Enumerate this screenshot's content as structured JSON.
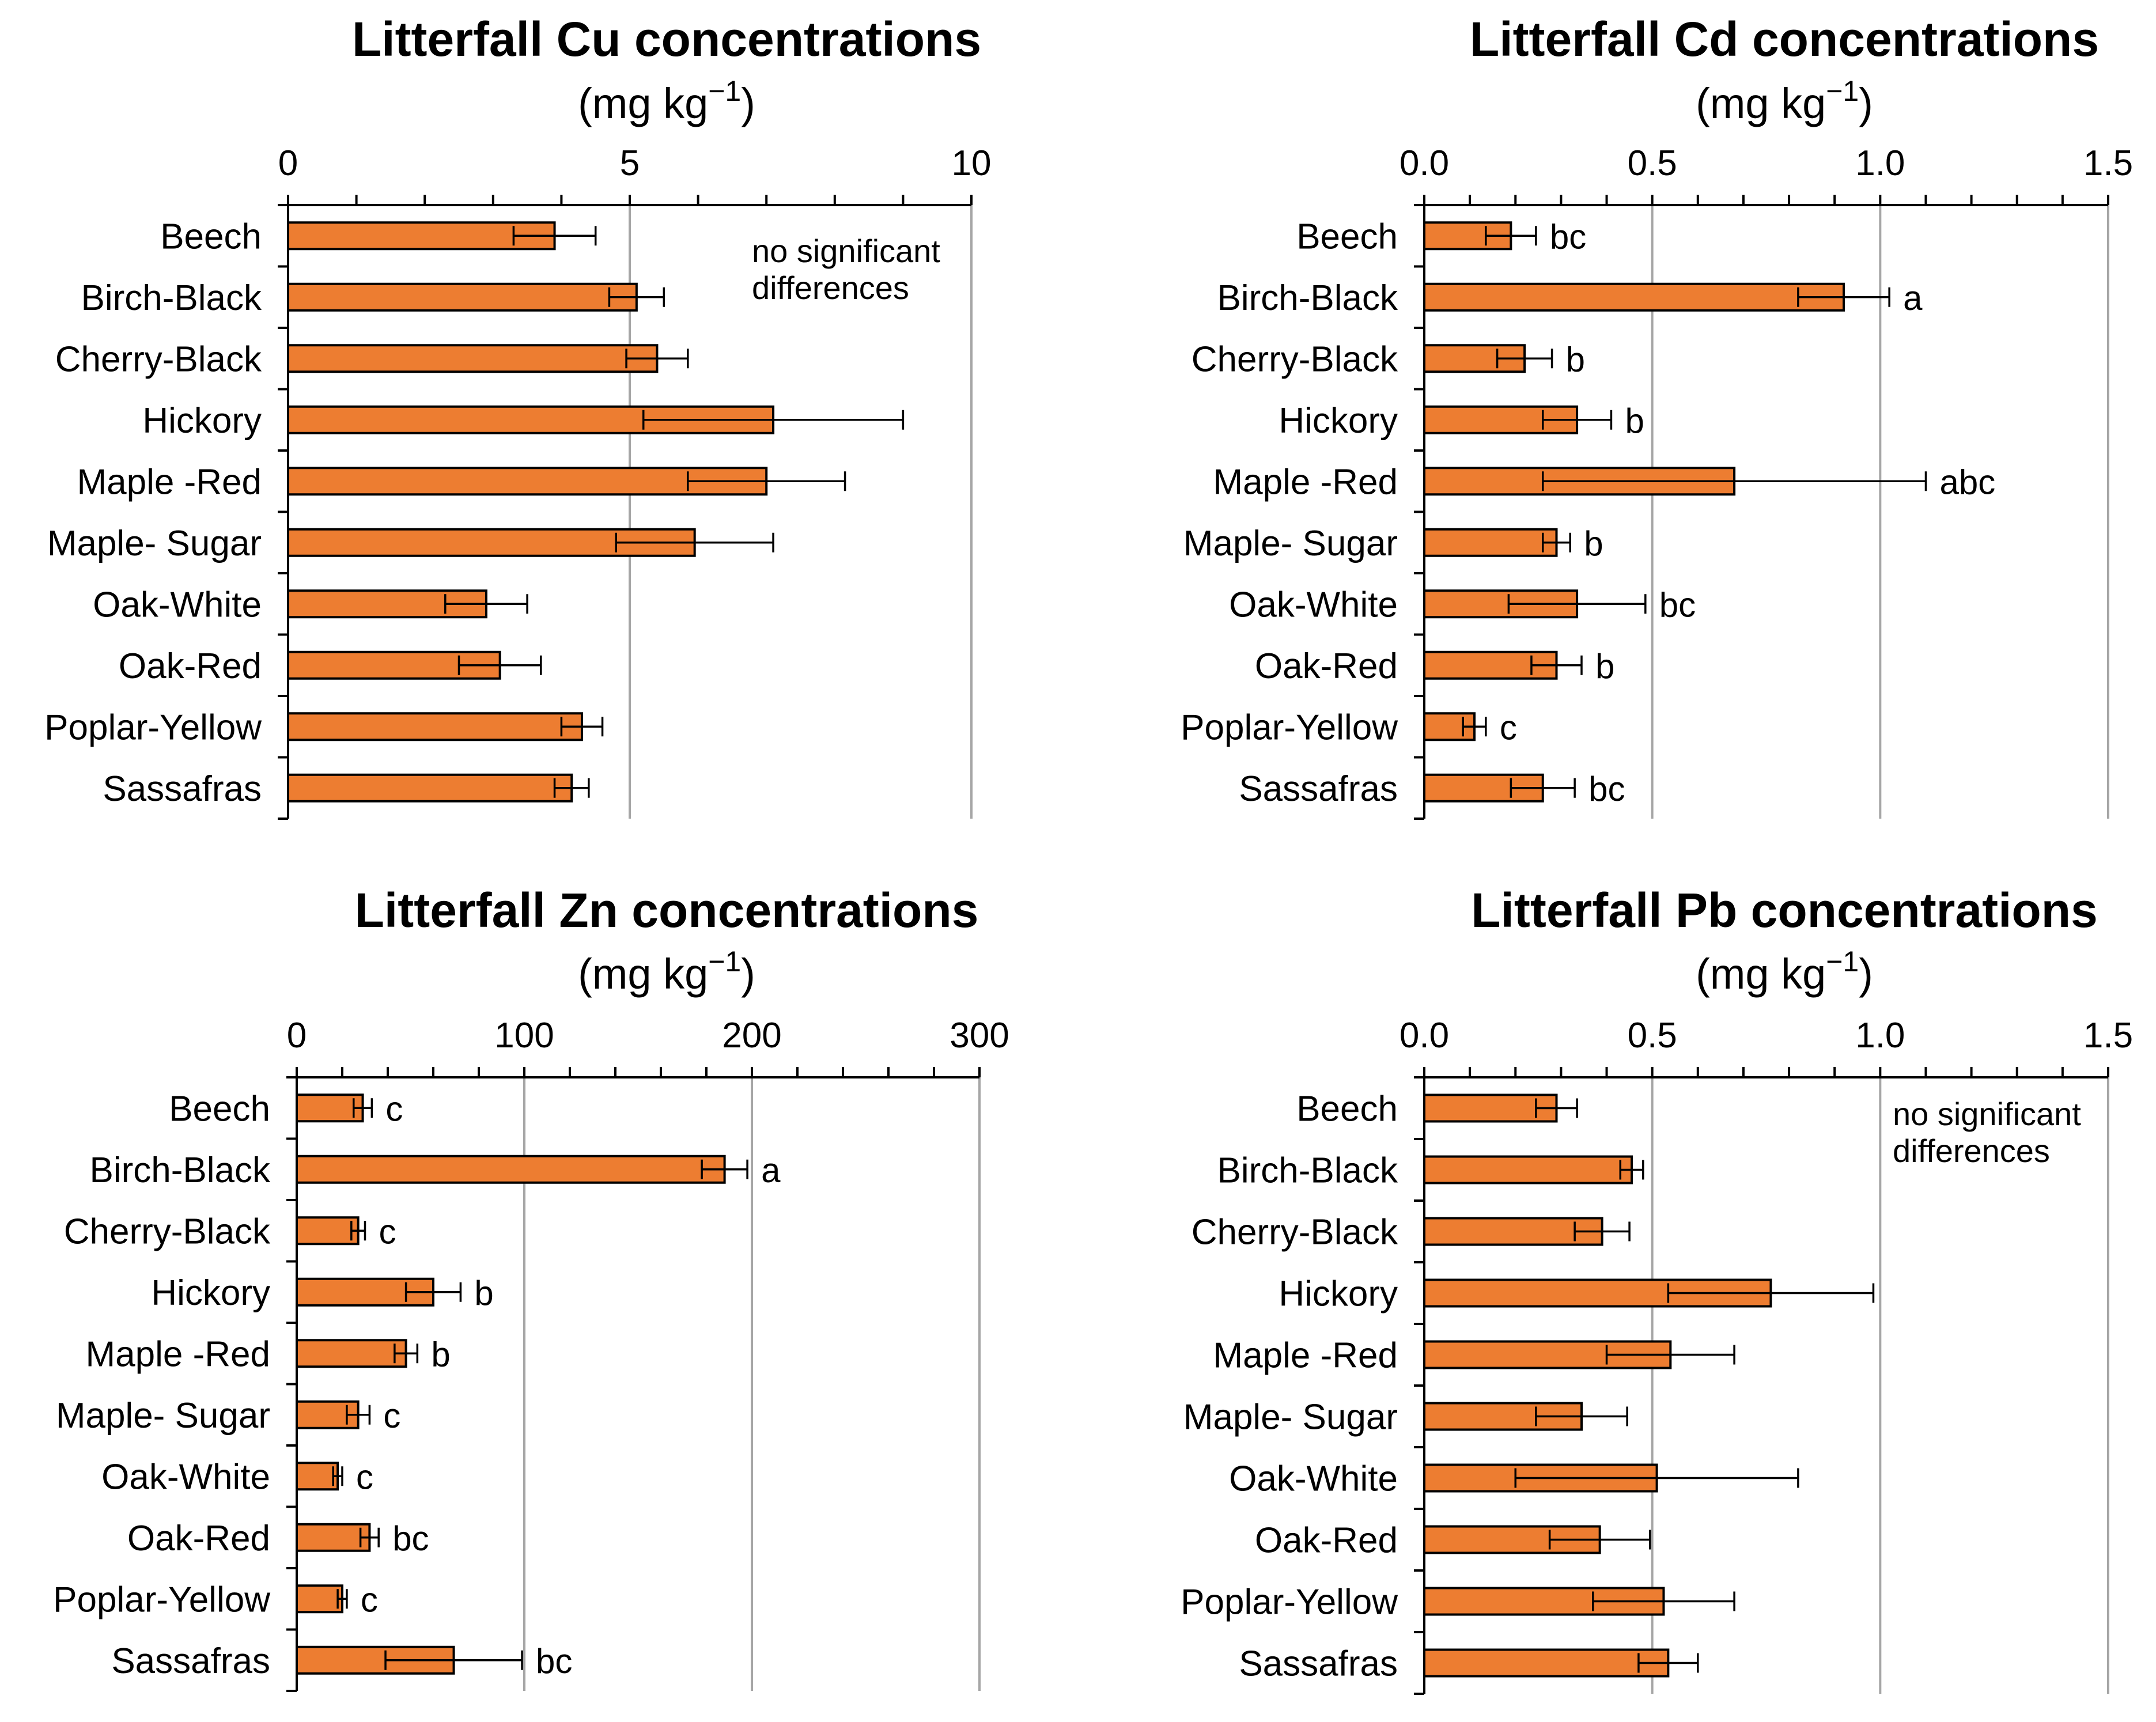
{
  "chart_data": [
    {
      "type": "bar",
      "orientation": "horizontal",
      "title": "Litterfall Cu concentrations",
      "units": "(mg kg",
      "units_exp": "−1",
      "units_close": ")",
      "xlim": [
        0,
        10
      ],
      "ticks": [
        0,
        5,
        10
      ],
      "tick_labels": [
        "0",
        "5",
        "10"
      ],
      "minor_step": 1,
      "gridlines": [
        5,
        10
      ],
      "categories": [
        "Beech",
        "Birch-Black",
        "Cherry-Black",
        "Hickory",
        "Maple -Red",
        "Maple- Sugar",
        "Oak-White",
        "Oak-Red",
        "Poplar-Yellow",
        "Sassafras"
      ],
      "values": [
        3.9,
        5.1,
        5.4,
        7.1,
        7.0,
        5.95,
        2.9,
        3.1,
        4.3,
        4.15
      ],
      "errors": [
        0.6,
        0.4,
        0.45,
        1.9,
        1.15,
        1.15,
        0.6,
        0.6,
        0.3,
        0.25
      ],
      "letters": [
        "",
        "",
        "",
        "",
        "",
        "",
        "",
        "",
        "",
        ""
      ],
      "note": [
        "no significant",
        "differences"
      ]
    },
    {
      "type": "bar",
      "orientation": "horizontal",
      "title": "Litterfall Cd concentrations",
      "units": "(mg kg",
      "units_exp": "−1",
      "units_close": ")",
      "xlim": [
        0,
        1.5
      ],
      "ticks": [
        0,
        0.5,
        1.0,
        1.5
      ],
      "tick_labels": [
        "0.0",
        "0.5",
        "1.0",
        "1.5"
      ],
      "minor_step": 0.1,
      "gridlines": [
        0.5,
        1.0,
        1.5
      ],
      "categories": [
        "Beech",
        "Birch-Black",
        "Cherry-Black",
        "Hickory",
        "Maple -Red",
        "Maple- Sugar",
        "Oak-White",
        "Oak-Red",
        "Poplar-Yellow",
        "Sassafras"
      ],
      "values": [
        0.19,
        0.92,
        0.22,
        0.335,
        0.68,
        0.29,
        0.335,
        0.29,
        0.11,
        0.26
      ],
      "errors": [
        0.055,
        0.1,
        0.06,
        0.075,
        0.42,
        0.03,
        0.15,
        0.055,
        0.025,
        0.07
      ],
      "letters": [
        "bc",
        "a",
        "b",
        "b",
        "abc",
        "b",
        "bc",
        "b",
        "c",
        "bc"
      ],
      "note": []
    },
    {
      "type": "bar",
      "orientation": "horizontal",
      "title": "Litterfall Zn concentrations",
      "units": "(mg kg",
      "units_exp": "−1",
      "units_close": ")",
      "xlim": [
        0,
        300
      ],
      "ticks": [
        0,
        100,
        200,
        300
      ],
      "tick_labels": [
        "0",
        "100",
        "200",
        "300"
      ],
      "minor_step": 20,
      "gridlines": [
        100,
        200,
        300
      ],
      "categories": [
        "Beech",
        "Birch-Black",
        "Cherry-Black",
        "Hickory",
        "Maple -Red",
        "Maple- Sugar",
        "Oak-White",
        "Oak-Red",
        "Poplar-Yellow",
        "Sassafras"
      ],
      "values": [
        29,
        188,
        27,
        60,
        48,
        27,
        18,
        32,
        20,
        69
      ],
      "errors": [
        4,
        10,
        3,
        12,
        5,
        5,
        2,
        4,
        2,
        30
      ],
      "letters": [
        "c",
        "a",
        "c",
        "b",
        "b",
        "c",
        "c",
        "bc",
        "c",
        "bc"
      ],
      "note": []
    },
    {
      "type": "bar",
      "orientation": "horizontal",
      "title": "Litterfall Pb concentrations",
      "units": "(mg kg",
      "units_exp": "−1",
      "units_close": ")",
      "xlim": [
        0,
        1.5
      ],
      "ticks": [
        0,
        0.5,
        1.0,
        1.5
      ],
      "tick_labels": [
        "0.0",
        "0.5",
        "1.0",
        "1.5"
      ],
      "minor_step": 0.1,
      "gridlines": [
        0.5,
        1.0,
        1.5
      ],
      "categories": [
        "Beech",
        "Birch-Black",
        "Cherry-Black",
        "Hickory",
        "Maple -Red",
        "Maple- Sugar",
        "Oak-White",
        "Oak-Red",
        "Poplar-Yellow",
        "Sassafras"
      ],
      "values": [
        0.29,
        0.455,
        0.39,
        0.76,
        0.54,
        0.345,
        0.51,
        0.385,
        0.525,
        0.535
      ],
      "errors": [
        0.045,
        0.025,
        0.06,
        0.225,
        0.14,
        0.1,
        0.31,
        0.11,
        0.155,
        0.065
      ],
      "letters": [
        "",
        "",
        "",
        "",
        "",
        "",
        "",
        "",
        "",
        ""
      ],
      "note": [
        "no significant",
        "differences"
      ]
    }
  ],
  "colors": {
    "bar_fill": "#ED7D31",
    "bar_stroke": "#000000",
    "gridline": "#A6A6A6",
    "axis": "#000000"
  }
}
